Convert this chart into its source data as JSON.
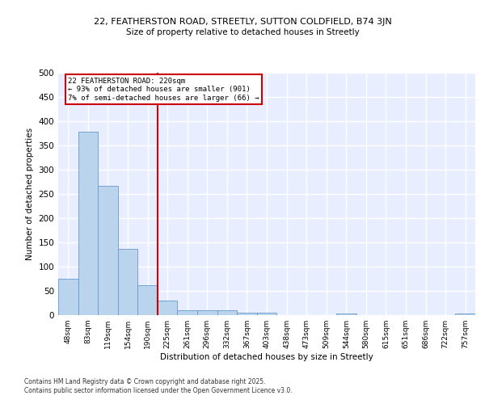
{
  "title_line1": "22, FEATHERSTON ROAD, STREETLY, SUTTON COLDFIELD, B74 3JN",
  "title_line2": "Size of property relative to detached houses in Streetly",
  "xlabel": "Distribution of detached houses by size in Streetly",
  "ylabel": "Number of detached properties",
  "categories": [
    "48sqm",
    "83sqm",
    "119sqm",
    "154sqm",
    "190sqm",
    "225sqm",
    "261sqm",
    "296sqm",
    "332sqm",
    "367sqm",
    "403sqm",
    "438sqm",
    "473sqm",
    "509sqm",
    "544sqm",
    "580sqm",
    "615sqm",
    "651sqm",
    "686sqm",
    "722sqm",
    "757sqm"
  ],
  "values": [
    75,
    378,
    267,
    136,
    62,
    30,
    10,
    10,
    10,
    5,
    5,
    0,
    0,
    0,
    4,
    0,
    0,
    0,
    0,
    0,
    4
  ],
  "bar_color": "#bad4ee",
  "bar_edge_color": "#6699cc",
  "annotation_line1": "22 FEATHERSTON ROAD: 220sqm",
  "annotation_line2": "← 93% of detached houses are smaller (901)",
  "annotation_line3": "7% of semi-detached houses are larger (66) →",
  "annotation_box_color": "#cc0000",
  "ref_line_color": "#cc0000",
  "ylim": [
    0,
    500
  ],
  "yticks": [
    0,
    50,
    100,
    150,
    200,
    250,
    300,
    350,
    400,
    450,
    500
  ],
  "footnote1": "Contains HM Land Registry data © Crown copyright and database right 2025.",
  "footnote2": "Contains public sector information licensed under the Open Government Licence v3.0.",
  "background_color": "#e8eeff",
  "grid_color": "#ffffff"
}
